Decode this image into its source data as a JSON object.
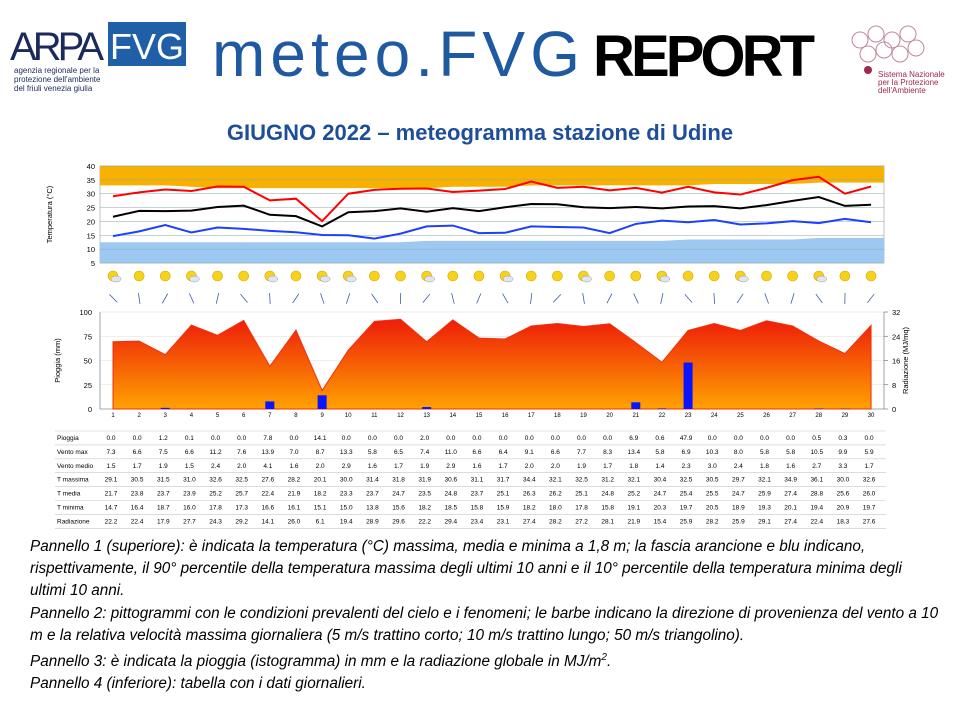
{
  "header": {
    "logo_left": "ARPA",
    "logo_box": "FVG",
    "agency": [
      "agenzia regionale per la",
      "protezione dell'ambiente",
      "del friuli venezia giulia"
    ],
    "brand": "meteo.FVG",
    "report": "REPORT",
    "logo_right": [
      "Sistema Nazionale",
      "per la Protezione",
      "dell'Ambiente"
    ]
  },
  "title": "GIUGNO 2022 – meteogramma stazione di Udine",
  "chart_data": [
    {
      "type": "line",
      "y_label": "Temperatura (°C)",
      "ylim": [
        5,
        40
      ],
      "yticks": [
        5,
        10,
        15,
        20,
        25,
        30,
        35,
        40
      ],
      "grid": true,
      "upper_band": {
        "color": "#f7b100",
        "values": [
          33,
          33,
          33,
          32.5,
          32,
          32,
          32,
          32,
          32,
          32,
          32,
          32,
          32,
          32.5,
          32.5,
          32.5,
          33,
          33,
          33,
          33,
          33,
          33,
          33,
          33.5,
          33.5,
          33.5,
          33.5,
          34,
          34,
          34
        ]
      },
      "lower_band": {
        "color": "#9cc8f2",
        "values": [
          12.5,
          12.5,
          12.5,
          12.5,
          12.5,
          12.5,
          12.5,
          12.5,
          12.5,
          12.5,
          12.5,
          12.5,
          13,
          13,
          13,
          13,
          13,
          13,
          13,
          13,
          13,
          13,
          13.5,
          13.5,
          13.5,
          13.5,
          13.5,
          14,
          14,
          14
        ]
      },
      "series": [
        {
          "name": "T massima",
          "color": "#ff0000",
          "values": [
            29.1,
            30.5,
            31.5,
            31.0,
            32.6,
            32.5,
            27.6,
            28.2,
            20.1,
            30.0,
            31.4,
            31.8,
            31.9,
            30.6,
            31.1,
            31.7,
            34.4,
            32.1,
            32.5,
            31.2,
            32.1,
            30.4,
            32.5,
            30.5,
            29.7,
            32.1,
            34.9,
            36.1,
            30.0,
            32.6
          ],
          "value_labels": [
            "29.1",
            "30.5",
            "31.5",
            "31.0",
            "32.6",
            "32.5",
            "27.6",
            "28.2",
            "20.1",
            "30.0",
            "31.4",
            "31.8",
            "31.9",
            "30.6",
            "31.1",
            "31.7",
            "34.4",
            "32.1",
            "32.5",
            "31.2",
            "32.1",
            "30.4",
            "32.5",
            "30.5",
            "29.7",
            "32.1",
            "34.9",
            "36.1",
            "30.0",
            "32.6"
          ]
        },
        {
          "name": "T media",
          "color": "#000000",
          "values": [
            21.7,
            23.8,
            23.7,
            23.9,
            25.2,
            25.7,
            22.4,
            21.9,
            18.2,
            23.3,
            23.7,
            24.7,
            23.5,
            24.8,
            23.7,
            25.1,
            26.3,
            26.2,
            25.1,
            24.8,
            25.2,
            24.7,
            25.4,
            25.5,
            24.7,
            25.9,
            27.4,
            28.8,
            25.6,
            26.0
          ],
          "value_labels": [
            "21.7",
            "23.8",
            "23.7",
            "23.9",
            "25.2",
            "25.7",
            "22.4",
            "21.9",
            "18.2",
            "23.3",
            "23.7",
            "24.7",
            "23.5",
            "24.8",
            "23.7",
            "25.1",
            "26.3",
            "26.2",
            "25.1",
            "24.8",
            "25.2",
            "24.7",
            "25.4",
            "25.5",
            "24.7",
            "25.9",
            "27.4",
            "28.8",
            "25.6",
            "26.0"
          ]
        },
        {
          "name": "T minima",
          "color": "#1f3fff",
          "values": [
            14.7,
            16.4,
            18.7,
            16.0,
            17.8,
            17.3,
            16.6,
            16.1,
            15.1,
            15.0,
            13.8,
            15.6,
            18.2,
            18.5,
            15.8,
            15.9,
            18.2,
            18.0,
            17.8,
            15.8,
            19.1,
            20.3,
            19.7,
            20.5,
            18.9,
            19.3,
            20.1,
            19.4,
            20.9,
            19.7
          ],
          "value_labels": [
            "14.7",
            "16.4",
            "18.7",
            "16.0",
            "17.8",
            "17.3",
            "16.6",
            "16.1",
            "15.1",
            "15.0",
            "13.8",
            "15.6",
            "18.2",
            "18.5",
            "15.8",
            "15.9",
            "18.2",
            "18.0",
            "17.8",
            "15.8",
            "19.1",
            "20.3",
            "19.7",
            "20.5",
            "18.9",
            "19.3",
            "20.1",
            "19.4",
            "20.9",
            "19.7"
          ]
        }
      ]
    },
    {
      "type": "bar",
      "categories": [
        1,
        2,
        3,
        4,
        5,
        6,
        7,
        8,
        9,
        10,
        11,
        12,
        13,
        14,
        15,
        16,
        17,
        18,
        19,
        20,
        21,
        22,
        23,
        24,
        25,
        26,
        27,
        28,
        29,
        30
      ],
      "y_label": "Pioggia (mm)",
      "ylim": [
        0,
        100
      ],
      "yticks": [
        0,
        25,
        50,
        75,
        100
      ],
      "y2_label": "Radiazione (MJ/mq)",
      "y2lim": [
        0,
        32
      ],
      "y2ticks": [
        0,
        8,
        16,
        24,
        32
      ],
      "grid": true,
      "series": [
        {
          "name": "Pioggia",
          "color": "#0a14ff",
          "values": [
            0.0,
            0.0,
            1.2,
            0.1,
            0.0,
            0.0,
            7.8,
            0.0,
            14.1,
            0.0,
            0.0,
            0.0,
            2.0,
            0.0,
            0.0,
            0.0,
            0.0,
            0.0,
            0.0,
            0.0,
            6.9,
            0.6,
            47.9,
            0.0,
            0.0,
            0.0,
            0.0,
            0.5,
            0.3,
            0.0
          ],
          "value_labels": [
            "0.0",
            "0.0",
            "1.2",
            "0.1",
            "0.0",
            "0.0",
            "7.8",
            "0.0",
            "14.1",
            "0.0",
            "0.0",
            "0.0",
            "2.0",
            "0.0",
            "0.0",
            "0.0",
            "0.0",
            "0.0",
            "0.0",
            "0.0",
            "6.9",
            "0.6",
            "47.9",
            "0.0",
            "0.0",
            "0.0",
            "0.0",
            "0.5",
            "0.3",
            "0.0"
          ]
        },
        {
          "name": "Radiazione",
          "color": "#f2300c",
          "axis": "y2",
          "type": "area",
          "values": [
            22.2,
            22.4,
            17.9,
            27.7,
            24.3,
            29.2,
            14.1,
            26.0,
            6.1,
            19.4,
            28.9,
            29.6,
            22.2,
            29.4,
            23.4,
            23.1,
            27.4,
            28.2,
            27.2,
            28.1,
            21.9,
            15.4,
            25.9,
            28.2,
            25.9,
            29.1,
            27.4,
            22.4,
            18.3,
            27.6
          ],
          "value_labels": [
            "22.2",
            "22.4",
            "17.9",
            "27.7",
            "24.3",
            "29.2",
            "14.1",
            "26.0",
            "6.1",
            "19.4",
            "28.9",
            "29.6",
            "22.2",
            "29.4",
            "23.4",
            "23.1",
            "27.4",
            "28.2",
            "27.2",
            "28.1",
            "21.9",
            "15.4",
            "25.9",
            "28.2",
            "25.9",
            "29.1",
            "27.4",
            "22.4",
            "18.3",
            "27.6"
          ]
        }
      ]
    }
  ],
  "table": {
    "rows": [
      {
        "label": "Vento max",
        "values": [
          "7.3",
          "6.6",
          "7.5",
          "6.6",
          "11.2",
          "7.6",
          "13.9",
          "7.0",
          "8.7",
          "13.3",
          "5.8",
          "6.5",
          "7.4",
          "11.0",
          "6.6",
          "6.4",
          "9.1",
          "6.6",
          "7.7",
          "8.3",
          "13.4",
          "5.8",
          "6.9",
          "10.3",
          "8.0",
          "5.8",
          "5.8",
          "10.5",
          "9.9",
          "5.9"
        ]
      },
      {
        "label": "Vento medio",
        "values": [
          "1.5",
          "1.7",
          "1.9",
          "1.5",
          "2.4",
          "2.0",
          "4.1",
          "1.6",
          "2.0",
          "2.9",
          "1.6",
          "1.7",
          "1.9",
          "2.9",
          "1.6",
          "1.7",
          "2.0",
          "2.0",
          "1.9",
          "1.7",
          "1.8",
          "1.4",
          "2.3",
          "3.0",
          "2.4",
          "1.8",
          "1.6",
          "2.7",
          "3.3",
          "1.7"
        ]
      }
    ]
  },
  "caption": {
    "panel1": "Pannello 1 (superiore): è indicata la temperatura (°C) massima, media e minima a 1,8 m; la fascia arancione e blu indicano, rispettivamente, il 90° percentile della temperatura massima degli ultimi 10 anni e il 10° percentile della temperatura minima degli ultimi 10 anni.",
    "panel2": "Pannello 2: pittogrammi con le condizioni prevalenti del cielo e i fenomeni; le barbe indicano la direzione di provenienza del vento a 10 m e la relativa velocità massima giornaliera (5 m/s trattino corto; 10 m/s trattino lungo; 50 m/s triangolino).",
    "panel3": {
      "text": "Pannello 3: è indicata la pioggia (istogramma) in mm e la radiazione globale in MJ/m",
      "sup": "2",
      "end": "."
    },
    "panel4": "Pannello 4 (inferiore): tabella con i dati giornalieri."
  }
}
